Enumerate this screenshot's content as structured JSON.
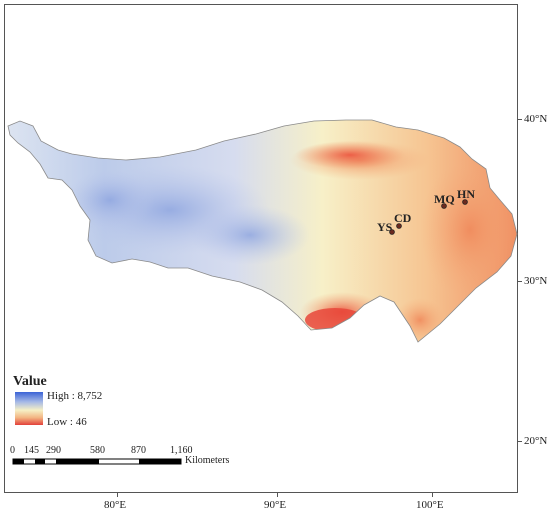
{
  "map": {
    "legend": {
      "title": "Value",
      "high_label": "High : 8,752",
      "low_label": "Low :  46",
      "ramp_colors": [
        "#3b63d6",
        "#a6b9e6",
        "#f6f0c6",
        "#f3b482",
        "#e2403a"
      ]
    },
    "scale_bar": {
      "ticks": [
        "0",
        "145",
        "290",
        "580",
        "870",
        "1,160"
      ],
      "unit": "Kilometers"
    },
    "lat_labels": [
      "40°N",
      "30°N",
      "20°N"
    ],
    "lon_labels": [
      "80°E",
      "90°E",
      "100°E"
    ],
    "sites": [
      {
        "code": "MQ"
      },
      {
        "code": "HN"
      },
      {
        "code": "CD"
      },
      {
        "code": "YS"
      }
    ],
    "colors": {
      "high_value": "#3b63d6",
      "mid_value": "#f6f0c6",
      "low_value": "#e2403a"
    }
  }
}
